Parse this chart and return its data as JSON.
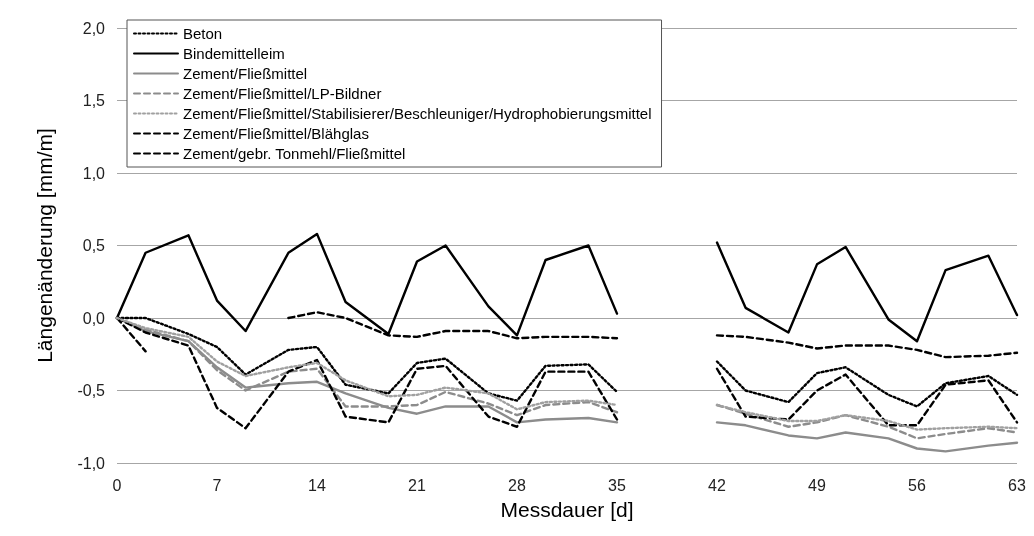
{
  "chart_data": {
    "type": "line",
    "xlabel": "Messdauer [d]",
    "ylabel": "Längenänderung [mm/m]",
    "x": [
      0,
      2,
      5,
      7,
      9,
      12,
      14,
      16,
      19,
      21,
      23,
      26,
      28,
      30,
      33,
      35,
      37,
      40,
      42,
      44,
      47,
      49,
      51,
      54,
      56,
      58,
      61,
      63
    ],
    "xlim": [
      0,
      63
    ],
    "xticks": [
      0,
      7,
      14,
      21,
      28,
      35,
      42,
      49,
      56,
      63
    ],
    "ylim": [
      -1,
      2
    ],
    "yticks": [
      {
        "value": -1,
        "label": "-1,0"
      },
      {
        "value": -0.5,
        "label": "-0,5"
      },
      {
        "value": 0,
        "label": "0,0"
      },
      {
        "value": 0.5,
        "label": "0,5"
      },
      {
        "value": 1,
        "label": "1,0"
      },
      {
        "value": 1.5,
        "label": "1,5"
      },
      {
        "value": 2,
        "label": "2,0"
      }
    ],
    "grid": "y",
    "legend": "top left",
    "marker": "none",
    "series": [
      {
        "name": "Beton",
        "color": "#000000",
        "line_style": "dotted",
        "values": [
          0,
          0,
          -0.11,
          -0.2,
          -0.39,
          -0.22,
          -0.2,
          -0.46,
          -0.52,
          -0.31,
          -0.28,
          -0.52,
          -0.57,
          -0.33,
          -0.32,
          -0.51,
          null,
          null,
          -0.3,
          -0.5,
          -0.58,
          -0.38,
          -0.34,
          -0.53,
          -0.61,
          -0.45,
          -0.4,
          -0.53
        ]
      },
      {
        "name": "Bindemittelleim",
        "color": "#000000",
        "line_style": "solid",
        "values": [
          0,
          0.45,
          0.57,
          0.12,
          -0.09,
          0.45,
          0.58,
          0.11,
          -0.11,
          0.39,
          0.5,
          0.08,
          -0.12,
          0.4,
          0.5,
          0.03,
          null,
          null,
          0.52,
          0.07,
          -0.1,
          0.37,
          0.49,
          -0.01,
          -0.16,
          0.33,
          0.43,
          0.02
        ]
      },
      {
        "name": "Zement/Fließmittel",
        "color": "#8c8c8c",
        "line_style": "solid",
        "values": [
          0,
          -0.09,
          -0.16,
          -0.34,
          -0.48,
          -0.45,
          -0.44,
          -0.52,
          -0.62,
          -0.66,
          -0.61,
          -0.61,
          -0.72,
          -0.7,
          -0.69,
          -0.72,
          null,
          null,
          -0.72,
          -0.74,
          -0.81,
          -0.83,
          -0.79,
          -0.83,
          -0.9,
          -0.92,
          -0.88,
          -0.86
        ]
      },
      {
        "name": "Zement/Fließmittel/LP-Bildner",
        "color": "#8c8c8c",
        "line_style": "dashed",
        "values": [
          0,
          -0.08,
          -0.16,
          -0.36,
          -0.5,
          -0.37,
          -0.35,
          -0.61,
          -0.61,
          -0.6,
          -0.51,
          -0.59,
          -0.67,
          -0.6,
          -0.58,
          -0.65,
          null,
          null,
          -0.6,
          -0.66,
          -0.75,
          -0.72,
          -0.67,
          -0.75,
          -0.83,
          -0.8,
          -0.76,
          -0.79
        ]
      },
      {
        "name": "Zement/Fließmittel/Stabilisierer/Beschleuniger/Hydrophobierungsmittel",
        "color": "#a0a0a0",
        "line_style": "dotted",
        "values": [
          0,
          -0.07,
          -0.13,
          -0.3,
          -0.4,
          -0.34,
          -0.31,
          -0.43,
          -0.54,
          -0.53,
          -0.48,
          -0.52,
          -0.63,
          -0.58,
          -0.57,
          -0.6,
          null,
          null,
          -0.6,
          -0.65,
          -0.71,
          -0.71,
          -0.67,
          -0.71,
          -0.77,
          -0.76,
          -0.75,
          -0.76
        ]
      },
      {
        "name": "Zement/Fließmittel/Blähglas",
        "color": "#000000",
        "line_style": "dashed",
        "values": [
          0,
          -0.1,
          -0.19,
          -0.62,
          -0.76,
          -0.37,
          -0.29,
          -0.68,
          -0.72,
          -0.35,
          -0.33,
          -0.68,
          -0.75,
          -0.37,
          -0.37,
          -0.7,
          null,
          null,
          -0.35,
          -0.68,
          -0.7,
          -0.5,
          -0.39,
          -0.74,
          -0.74,
          -0.46,
          -0.43,
          -0.72
        ]
      },
      {
        "name": "Zement/gebr. Tonmehl/Fließmittel",
        "color": "#000000",
        "line_style": "dashed",
        "values": [
          0,
          -0.23,
          null,
          null,
          null,
          0,
          0.04,
          0,
          -0.12,
          -0.13,
          -0.09,
          -0.09,
          -0.14,
          -0.13,
          -0.13,
          -0.14,
          null,
          null,
          -0.12,
          -0.13,
          -0.17,
          -0.21,
          -0.19,
          -0.19,
          -0.22,
          -0.27,
          -0.26,
          -0.24
        ]
      }
    ]
  }
}
